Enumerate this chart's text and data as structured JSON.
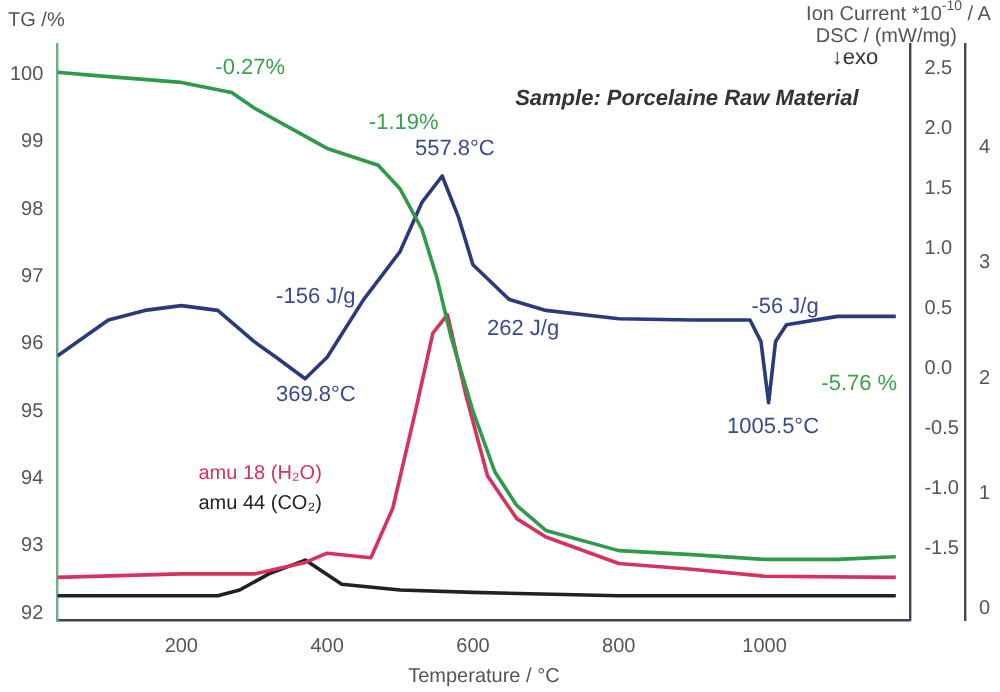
{
  "chart_data": {
    "type": "line",
    "xlabel": "Temperature / °C",
    "ylabel": "TG /%",
    "y2label": "DSC / (mW/mg)",
    "y3label": "Ion Current *10$^{-10}$ / A",
    "xlim": [
      30,
      1200
    ],
    "xticks": [
      200,
      400,
      600,
      800,
      1000
    ],
    "ylim": [
      91.9,
      100.45
    ],
    "yticks": [
      92,
      93,
      94,
      95,
      96,
      97,
      98,
      99,
      100
    ],
    "y2lim": [
      -2.1,
      2.7
    ],
    "y2ticks": [
      -1.5,
      {
        "value": -1,
        "label": "-1.0"
      },
      -0.5,
      {
        "value": 0,
        "label": "0.0"
      },
      0.5,
      {
        "value": 1,
        "label": "1.0"
      },
      1.5,
      {
        "value": 2,
        "label": "2.0"
      },
      2.5
    ],
    "y3lim": [
      -0.1,
      4.9
    ],
    "y3ticks": [
      0,
      1,
      2,
      3,
      4
    ],
    "grid": false,
    "legend": false,
    "marker": "none",
    "line_style": "solid",
    "series": [
      {
        "color": "#2e9a4a",
        "x": [
          30,
          83,
          200,
          269,
          300,
          400,
          470,
          500,
          530,
          550,
          570,
          600,
          630,
          660,
          700,
          800,
          900,
          1000,
          1100,
          1180
        ],
        "values": [
          100.03,
          99.98,
          99.88,
          99.73,
          99.5,
          98.9,
          98.65,
          98.3,
          97.7,
          97.0,
          96.1,
          95.0,
          94.1,
          93.6,
          93.23,
          92.93,
          92.87,
          92.8,
          92.8,
          92.84
        ]
      },
      {
        "color": "#2b3a7a",
        "axis": "y2",
        "x": [
          30,
          100,
          150,
          200,
          250,
          300,
          330,
          369.8,
          400,
          450,
          500,
          530,
          557.8,
          580,
          600,
          650,
          700,
          800,
          900,
          980,
          995,
          1005.5,
          1015,
          1030,
          1100,
          1180
        ],
        "values": [
          0.1,
          0.4,
          0.48,
          0.52,
          0.48,
          0.22,
          0.09,
          -0.09,
          0.09,
          0.57,
          0.97,
          1.38,
          1.6,
          1.26,
          0.86,
          0.57,
          0.48,
          0.41,
          0.4,
          0.4,
          0.22,
          -0.29,
          0.22,
          0.36,
          0.43,
          0.43
        ]
      },
      {
        "name": "amu 18 (H₂O)",
        "color": "#d6325e",
        "axis": "y3",
        "x": [
          30,
          200,
          300,
          370,
          400,
          460,
          490,
          520,
          545,
          565,
          590,
          620,
          660,
          700,
          800,
          900,
          1000,
          1180
        ],
        "values": [
          0.27,
          0.3,
          0.3,
          0.4,
          0.48,
          0.44,
          0.87,
          1.68,
          2.39,
          2.55,
          1.86,
          1.15,
          0.78,
          0.62,
          0.39,
          0.34,
          0.28,
          0.27
        ]
      },
      {
        "name": "amu 44 (CO₂)",
        "color": "#222222",
        "axis": "y3",
        "x": [
          30,
          250,
          280,
          320,
          370,
          420,
          500,
          600,
          800,
          1180
        ],
        "values": [
          0.11,
          0.11,
          0.16,
          0.3,
          0.42,
          0.21,
          0.16,
          0.14,
          0.11,
          0.11
        ]
      }
    ],
    "annotations": [
      "↓exo",
      "Sample: Porcelaine Raw Material",
      "-0.27%",
      "-1.19%",
      "557.8°C",
      "-156 J/g",
      "369.8°C",
      "262 J/g",
      "-56 J/g",
      "1005.5°C",
      "-5.76 %"
    ]
  }
}
